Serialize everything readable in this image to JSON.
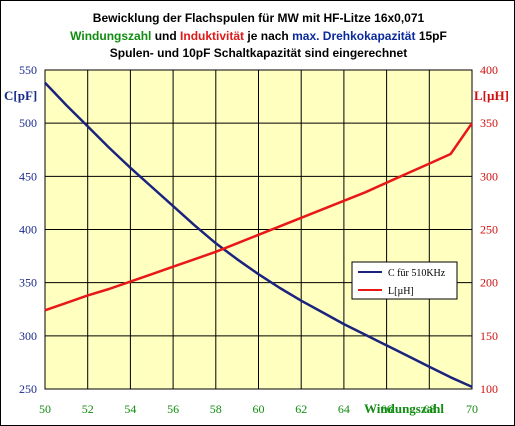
{
  "title": {
    "line1": "Bewicklung der Flachspulen für MW mit HF-Litze 16x0,071",
    "line2_part1": "Windungszahl",
    "line2_part2": " und ",
    "line2_part3": "Induktivität",
    "line2_part4": " je nach ",
    "line2_part5": "max. Drehkokapazität",
    "line2_part6": " 15pF",
    "line3": "Spulen- und 10pF Schaltkapazität sind eingerechnet"
  },
  "colors": {
    "plot_background": "#ffffc0",
    "grid": "#000000",
    "capacity_series": "#1a237e",
    "inductance_series": "#e81818",
    "left_axis_text": "#1a2a8c",
    "right_axis_text": "#d01010",
    "x_axis_text": "#108c10"
  },
  "chart_data": {
    "type": "line",
    "xlabel": "Windungszahl",
    "ylabel_left": "C[pF]",
    "ylabel_right": "L[µH]",
    "xlim": [
      50,
      70
    ],
    "ylim_left": [
      250,
      550
    ],
    "ylim_right": [
      100,
      400
    ],
    "x_ticks": [
      "50",
      "52",
      "54",
      "56",
      "58",
      "60",
      "62",
      "64",
      "66",
      "68",
      "70"
    ],
    "y_left_ticks": [
      "250",
      "300",
      "350",
      "400",
      "450",
      "500",
      "550"
    ],
    "y_right_ticks": [
      "100",
      "150",
      "200",
      "250",
      "300",
      "350",
      "400"
    ],
    "grid": true,
    "legend_position": "center-right",
    "series": [
      {
        "name": "C für 510KHz",
        "axis": "left",
        "x": [
          50,
          51,
          52,
          53,
          54,
          55,
          56,
          57,
          58,
          59,
          60,
          61,
          62,
          63,
          64,
          65,
          66,
          67,
          68,
          69,
          70
        ],
        "y": [
          538,
          517,
          497,
          477,
          458,
          440,
          422,
          404,
          387,
          372,
          358,
          345,
          333,
          322,
          311,
          301,
          291,
          281,
          271,
          261,
          252
        ]
      },
      {
        "name": "L[µH]",
        "axis": "right",
        "x": [
          50,
          51,
          52,
          53,
          54,
          55,
          56,
          57,
          58,
          59,
          60,
          61,
          62,
          63,
          64,
          65,
          66,
          67,
          68,
          69,
          70
        ],
        "y": [
          174,
          181,
          188,
          194,
          201,
          208,
          215,
          222,
          229,
          237,
          245,
          253,
          261,
          269,
          277,
          285,
          294,
          303,
          312,
          321,
          350
        ]
      }
    ]
  }
}
